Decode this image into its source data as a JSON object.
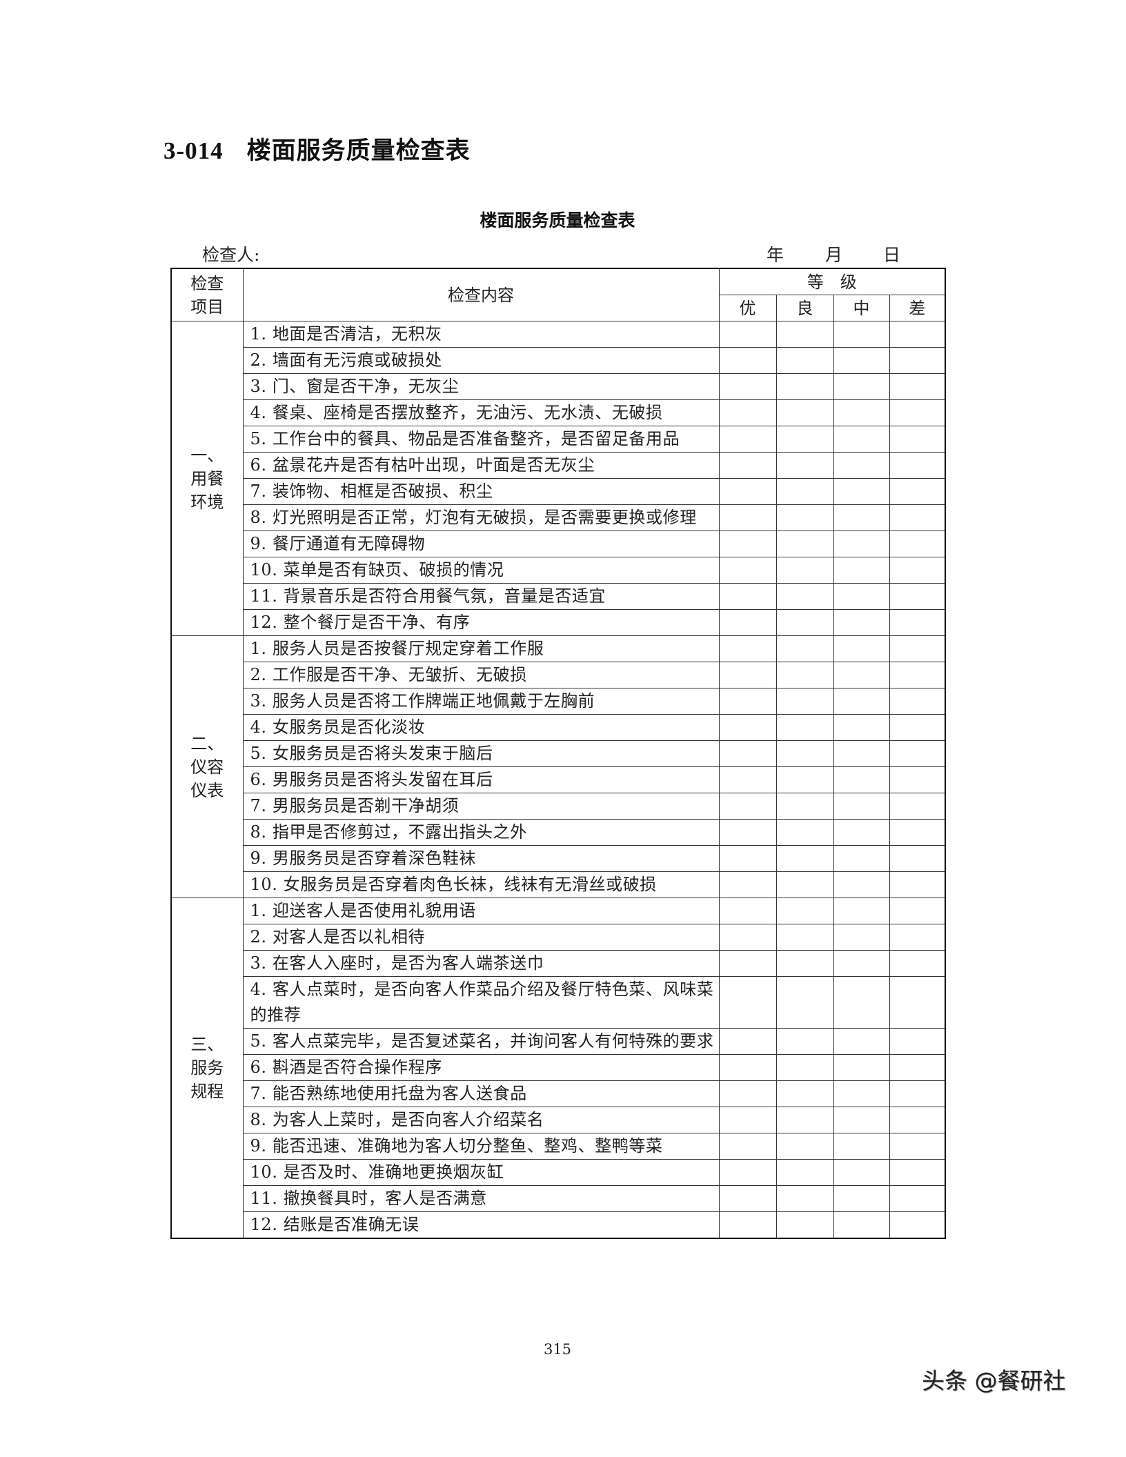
{
  "heading": {
    "number": "3-014",
    "title": "楼面服务质量检查表"
  },
  "form_title": "楼面服务质量检查表",
  "inspector_label": "检查人:",
  "date": {
    "year": "年",
    "month": "月",
    "day": "日"
  },
  "table": {
    "headers": {
      "item": [
        "检查",
        "项目"
      ],
      "content": "检查内容",
      "grade": "等　级",
      "grades": [
        "优",
        "良",
        "中",
        "差"
      ]
    },
    "sections": [
      {
        "label": [
          "一、",
          "用餐",
          "环境"
        ],
        "items": [
          "1. 地面是否清洁，无积灰",
          "2. 墙面有无污痕或破损处",
          "3. 门、窗是否干净，无灰尘",
          "4. 餐桌、座椅是否摆放整齐，无油污、无水渍、无破损",
          "5. 工作台中的餐具、物品是否准备整齐，是否留足备用品",
          "6. 盆景花卉是否有枯叶出现，叶面是否无灰尘",
          "7. 装饰物、相框是否破损、积尘",
          "8. 灯光照明是否正常，灯泡有无破损，是否需要更换或修理",
          "9. 餐厅通道有无障碍物",
          "10. 菜单是否有缺页、破损的情况",
          "11. 背景音乐是否符合用餐气氛，音量是否适宜",
          "12. 整个餐厅是否干净、有序"
        ]
      },
      {
        "label": [
          "二、",
          "仪容",
          "仪表"
        ],
        "items": [
          "1. 服务人员是否按餐厅规定穿着工作服",
          "2. 工作服是否干净、无皱折、无破损",
          "3. 服务人员是否将工作牌端正地佩戴于左胸前",
          "4. 女服务员是否化淡妆",
          "5. 女服务员是否将头发束于脑后",
          "6. 男服务员是否将头发留在耳后",
          "7. 男服务员是否剃干净胡须",
          "8. 指甲是否修剪过，不露出指头之外",
          "9. 男服务员是否穿着深色鞋袜",
          "10. 女服务员是否穿着肉色长袜，线袜有无滑丝或破损"
        ]
      },
      {
        "label": [
          "三、",
          "服务",
          "规程"
        ],
        "items": [
          "1. 迎送客人是否使用礼貌用语",
          "2. 对客人是否以礼相待",
          "3. 在客人入座时，是否为客人端茶送巾",
          "4. 客人点菜时，是否向客人作菜品介绍及餐厅特色菜、风味菜的推荐",
          "5. 客人点菜完毕，是否复述菜名，并询问客人有何特殊的要求",
          "6. 斟酒是否符合操作程序",
          "7. 能否熟练地使用托盘为客人送食品",
          "8. 为客人上菜时，是否向客人介绍菜名",
          "9. 能否迅速、准确地为客人切分整鱼、整鸡、整鸭等菜",
          "10. 是否及时、准确地更换烟灰缸",
          "11. 撤换餐具时，客人是否满意",
          "12. 结账是否准确无误"
        ]
      }
    ]
  },
  "page_number": "315",
  "watermark": "头条 @餐研社"
}
